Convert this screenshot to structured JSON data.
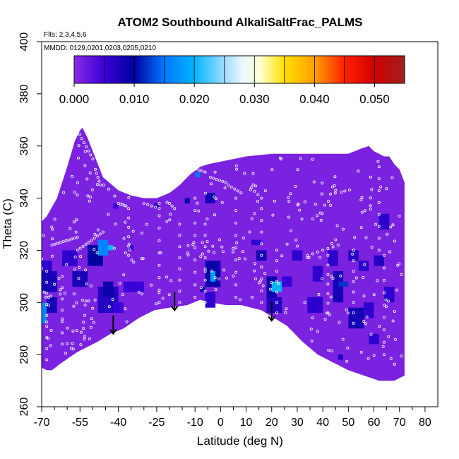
{
  "chart_data": {
    "type": "heatmap",
    "title": "ATOM2 Southbound AlkaliSaltFrac_PALMS",
    "subtitle_flights": "Flts: 2,3,4,5,6",
    "subtitle_dates": "MMDD: 0129,0201,0203,0205,0210",
    "xlabel": "Latitude (deg N)",
    "ylabel": "Theta (C)",
    "xlim": [
      -70,
      85
    ],
    "ylim": [
      260,
      400
    ],
    "x_major_ticks": [
      -70,
      -55,
      -40,
      -25,
      -10,
      0,
      10,
      20,
      30,
      40,
      50,
      60,
      70,
      80
    ],
    "x_major_labels": [
      "-70",
      "-55",
      "-40",
      "-25",
      "-10",
      "0",
      "10",
      "20",
      "30",
      "40",
      "50",
      "60",
      "70",
      "80"
    ],
    "x_minor_ticks": [
      -65,
      -60,
      -50,
      -45,
      -35,
      -30,
      -20,
      -15,
      -5,
      5,
      15,
      25,
      35,
      45,
      55,
      65,
      75
    ],
    "y_ticks": [
      260,
      280,
      300,
      320,
      340,
      360,
      380,
      400
    ],
    "y_labels": [
      "260",
      "280",
      "300",
      "320",
      "340",
      "360",
      "380",
      "400"
    ],
    "colorbar": {
      "min": 0.0,
      "max": 0.055,
      "ticks": [
        0.0,
        0.01,
        0.02,
        0.03,
        0.04,
        0.05
      ],
      "labels": [
        "0.000",
        "0.010",
        "0.020",
        "0.030",
        "0.040",
        "0.050"
      ],
      "dividers": [
        0.005,
        0.01,
        0.015,
        0.02,
        0.025,
        0.03,
        0.035,
        0.04,
        0.045,
        0.05
      ],
      "stops": [
        {
          "v": 0.0,
          "color": "#8a2be2"
        },
        {
          "v": 0.005,
          "color": "#3a00d8"
        },
        {
          "v": 0.01,
          "color": "#0000a0"
        },
        {
          "v": 0.015,
          "color": "#0078ff"
        },
        {
          "v": 0.02,
          "color": "#00b4ff"
        },
        {
          "v": 0.025,
          "color": "#a0dcff"
        },
        {
          "v": 0.028,
          "color": "#eaf8ff"
        },
        {
          "v": 0.031,
          "color": "#ffffd0"
        },
        {
          "v": 0.035,
          "color": "#ffe000"
        },
        {
          "v": 0.04,
          "color": "#ffa000"
        },
        {
          "v": 0.045,
          "color": "#ff2000"
        },
        {
          "v": 0.05,
          "color": "#d00000"
        },
        {
          "v": 0.055,
          "color": "#a02020"
        }
      ]
    },
    "background_value": 0.001,
    "domain_top": [
      [
        -70,
        331
      ],
      [
        -68,
        333
      ],
      [
        -64,
        340
      ],
      [
        -60,
        352
      ],
      [
        -57,
        362
      ],
      [
        -55,
        366
      ],
      [
        -54,
        367
      ],
      [
        -52,
        363
      ],
      [
        -46,
        348
      ],
      [
        -40,
        343
      ],
      [
        -35,
        341
      ],
      [
        -30,
        340
      ],
      [
        -25,
        340
      ],
      [
        -20,
        342
      ],
      [
        -16,
        345
      ],
      [
        -12,
        349
      ],
      [
        -8,
        352
      ],
      [
        -5,
        353
      ],
      [
        0,
        354
      ],
      [
        5,
        355
      ],
      [
        10,
        356
      ],
      [
        20,
        357
      ],
      [
        30,
        357
      ],
      [
        40,
        357
      ],
      [
        50,
        357
      ],
      [
        55,
        359
      ],
      [
        58,
        360
      ],
      [
        60,
        358
      ],
      [
        62,
        357
      ],
      [
        64,
        356
      ],
      [
        66,
        356
      ],
      [
        68,
        353
      ],
      [
        70,
        351
      ],
      [
        72,
        346
      ]
    ],
    "domain_bottom": [
      [
        72,
        272
      ],
      [
        70,
        271
      ],
      [
        68,
        270
      ],
      [
        62,
        270
      ],
      [
        56,
        272
      ],
      [
        50,
        274
      ],
      [
        44,
        277
      ],
      [
        38,
        280
      ],
      [
        32,
        285
      ],
      [
        26,
        291
      ],
      [
        21,
        294
      ],
      [
        16,
        297
      ],
      [
        8,
        299
      ],
      [
        2,
        299
      ],
      [
        -4,
        300
      ],
      [
        -8,
        301
      ],
      [
        -13,
        299
      ],
      [
        -20,
        298
      ],
      [
        -26,
        297
      ],
      [
        -32,
        294
      ],
      [
        -38,
        290
      ],
      [
        -43,
        288
      ],
      [
        -48,
        285
      ],
      [
        -52,
        283
      ],
      [
        -56,
        281
      ],
      [
        -59,
        279
      ],
      [
        -62,
        277
      ],
      [
        -66,
        274
      ],
      [
        -68,
        274
      ],
      [
        -70,
        275
      ]
    ],
    "patches": [
      {
        "x": [
          -70,
          -66
        ],
        "y": [
          312,
          316
        ],
        "value": 0.006
      },
      {
        "x": [
          -70,
          -64
        ],
        "y": [
          304,
          312
        ],
        "value": 0.008
      },
      {
        "x": [
          -70,
          -68
        ],
        "y": [
          292,
          300
        ],
        "value": 0.016
      },
      {
        "x": [
          -68,
          -64
        ],
        "y": [
          296,
          302
        ],
        "value": 0.008
      },
      {
        "x": [
          -62,
          -56
        ],
        "y": [
          314,
          320
        ],
        "value": 0.006
      },
      {
        "x": [
          -58,
          -52
        ],
        "y": [
          306,
          312
        ],
        "value": 0.008
      },
      {
        "x": [
          -52,
          -46
        ],
        "y": [
          314,
          322
        ],
        "value": 0.01
      },
      {
        "x": [
          -48,
          -44
        ],
        "y": [
          318,
          324
        ],
        "value": 0.016
      },
      {
        "x": [
          -44,
          -42
        ],
        "y": [
          320,
          322
        ],
        "value": 0.02
      },
      {
        "x": [
          -48,
          -40
        ],
        "y": [
          296,
          306
        ],
        "value": 0.007
      },
      {
        "x": [
          -46,
          -42
        ],
        "y": [
          302,
          308
        ],
        "value": 0.009
      },
      {
        "x": [
          -42,
          -38
        ],
        "y": [
          296,
          300
        ],
        "value": 0.005
      },
      {
        "x": [
          -38,
          -30
        ],
        "y": [
          304,
          308
        ],
        "value": 0.005
      },
      {
        "x": [
          -26,
          -24
        ],
        "y": [
          336,
          338
        ],
        "value": 0.006
      },
      {
        "x": [
          -14,
          -12
        ],
        "y": [
          338,
          340
        ],
        "value": 0.01
      },
      {
        "x": [
          -10,
          -8
        ],
        "y": [
          348,
          350
        ],
        "value": 0.015
      },
      {
        "x": [
          -6,
          -2
        ],
        "y": [
          338,
          342
        ],
        "value": 0.008
      },
      {
        "x": [
          -4,
          -2
        ],
        "y": [
          340,
          342
        ],
        "value": 0.01
      },
      {
        "x": [
          -8,
          -6
        ],
        "y": [
          304,
          306
        ],
        "value": 0.009
      },
      {
        "x": [
          -6,
          0
        ],
        "y": [
          306,
          316
        ],
        "value": 0.009
      },
      {
        "x": [
          -4,
          -2
        ],
        "y": [
          308,
          312
        ],
        "value": 0.018
      },
      {
        "x": [
          -6,
          -2
        ],
        "y": [
          298,
          304
        ],
        "value": 0.006
      },
      {
        "x": [
          12,
          16
        ],
        "y": [
          322,
          324
        ],
        "value": 0.006
      },
      {
        "x": [
          14,
          18
        ],
        "y": [
          316,
          320
        ],
        "value": 0.008
      },
      {
        "x": [
          18,
          22
        ],
        "y": [
          302,
          310
        ],
        "value": 0.009
      },
      {
        "x": [
          20,
          24
        ],
        "y": [
          304,
          308
        ],
        "value": 0.02
      },
      {
        "x": [
          18,
          24
        ],
        "y": [
          296,
          302
        ],
        "value": 0.007
      },
      {
        "x": [
          24,
          28
        ],
        "y": [
          306,
          310
        ],
        "value": 0.005
      },
      {
        "x": [
          28,
          32
        ],
        "y": [
          316,
          320
        ],
        "value": 0.006
      },
      {
        "x": [
          36,
          40
        ],
        "y": [
          308,
          314
        ],
        "value": 0.006
      },
      {
        "x": [
          34,
          40
        ],
        "y": [
          296,
          302
        ],
        "value": 0.006
      },
      {
        "x": [
          42,
          46
        ],
        "y": [
          314,
          320
        ],
        "value": 0.006
      },
      {
        "x": [
          44,
          48
        ],
        "y": [
          300,
          312
        ],
        "value": 0.008
      },
      {
        "x": [
          46,
          50
        ],
        "y": [
          306,
          308
        ],
        "value": 0.012
      },
      {
        "x": [
          50,
          54
        ],
        "y": [
          316,
          320
        ],
        "value": 0.007
      },
      {
        "x": [
          54,
          58
        ],
        "y": [
          312,
          316
        ],
        "value": 0.006
      },
      {
        "x": [
          50,
          56
        ],
        "y": [
          290,
          298
        ],
        "value": 0.008
      },
      {
        "x": [
          56,
          60
        ],
        "y": [
          294,
          300
        ],
        "value": 0.006
      },
      {
        "x": [
          58,
          62
        ],
        "y": [
          284,
          288
        ],
        "value": 0.006
      },
      {
        "x": [
          60,
          64
        ],
        "y": [
          314,
          318
        ],
        "value": 0.007
      },
      {
        "x": [
          62,
          66
        ],
        "y": [
          328,
          334
        ],
        "value": 0.006
      },
      {
        "x": [
          46,
          48
        ],
        "y": [
          278,
          280
        ],
        "value": 0.007
      },
      {
        "x": [
          64,
          68
        ],
        "y": [
          300,
          306
        ],
        "value": 0.006
      },
      {
        "x": [
          -36,
          -34
        ],
        "y": [
          320,
          322
        ],
        "value": 0.005
      },
      {
        "x": [
          -42,
          -40
        ],
        "y": [
          336,
          338
        ],
        "value": 0.005
      }
    ],
    "arrows": [
      {
        "lat": -42,
        "theta_top": 295,
        "theta_bottom": 288
      },
      {
        "lat": -18,
        "theta_top": 304,
        "theta_bottom": 297
      },
      {
        "lat": 20,
        "theta_top": 300,
        "theta_bottom": 293
      }
    ],
    "sample_traces": [
      {
        "from": [
          -56,
          366
        ],
        "to": [
          -50,
          355
        ],
        "n": 8
      },
      {
        "from": [
          -49,
          351
        ],
        "to": [
          -47,
          345
        ],
        "n": 5
      },
      {
        "from": [
          -40,
          338
        ],
        "to": [
          -37,
          337
        ],
        "n": 5
      },
      {
        "from": [
          -30,
          338
        ],
        "to": [
          -24,
          336
        ],
        "n": 5
      },
      {
        "from": [
          -20,
          338
        ],
        "to": [
          -18,
          336
        ],
        "n": 3
      },
      {
        "from": [
          -12,
          352
        ],
        "to": [
          -6,
          350
        ],
        "n": 6
      },
      {
        "from": [
          -4,
          348
        ],
        "to": [
          2,
          346
        ],
        "n": 6
      },
      {
        "from": [
          3,
          345
        ],
        "to": [
          8,
          342
        ],
        "n": 5
      },
      {
        "from": [
          12,
          344
        ],
        "to": [
          16,
          340
        ],
        "n": 4
      },
      {
        "from": [
          -66,
          322
        ],
        "to": [
          -56,
          325
        ],
        "n": 10
      },
      {
        "from": [
          -56,
          320
        ],
        "to": [
          -46,
          327
        ],
        "n": 10
      },
      {
        "from": [
          -36,
          336
        ],
        "to": [
          -36,
          318
        ],
        "n": 6
      },
      {
        "from": [
          -24,
          338
        ],
        "to": [
          -24,
          300
        ],
        "n": 9
      },
      {
        "from": [
          -16,
          330
        ],
        "to": [
          -16,
          300
        ],
        "n": 8
      },
      {
        "from": [
          -10,
          340
        ],
        "to": [
          -10,
          302
        ],
        "n": 9
      },
      {
        "from": [
          -6,
          330
        ],
        "to": [
          -6,
          300
        ],
        "n": 8
      },
      {
        "from": [
          6,
          340
        ],
        "to": [
          6,
          302
        ],
        "n": 9
      },
      {
        "from": [
          16,
          336
        ],
        "to": [
          16,
          300
        ],
        "n": 9
      },
      {
        "from": [
          22,
          320
        ],
        "to": [
          22,
          296
        ],
        "n": 7
      },
      {
        "from": [
          42,
          318
        ],
        "to": [
          42,
          296
        ],
        "n": 7
      },
      {
        "from": [
          52,
          320
        ],
        "to": [
          52,
          292
        ],
        "n": 8
      },
      {
        "from": [
          62,
          352
        ],
        "to": [
          62,
          320
        ],
        "n": 8
      },
      {
        "from": [
          64,
          318
        ],
        "to": [
          64,
          280
        ],
        "n": 9
      },
      {
        "from": [
          -68,
          312
        ],
        "to": [
          -68,
          278
        ],
        "n": 9
      },
      {
        "from": [
          -62,
          310
        ],
        "to": [
          -62,
          284
        ],
        "n": 7
      },
      {
        "from": [
          34,
          318
        ],
        "to": [
          46,
          322
        ],
        "n": 7
      }
    ],
    "sample_scatter_count": 320,
    "sample_scatter_seed": 7
  }
}
